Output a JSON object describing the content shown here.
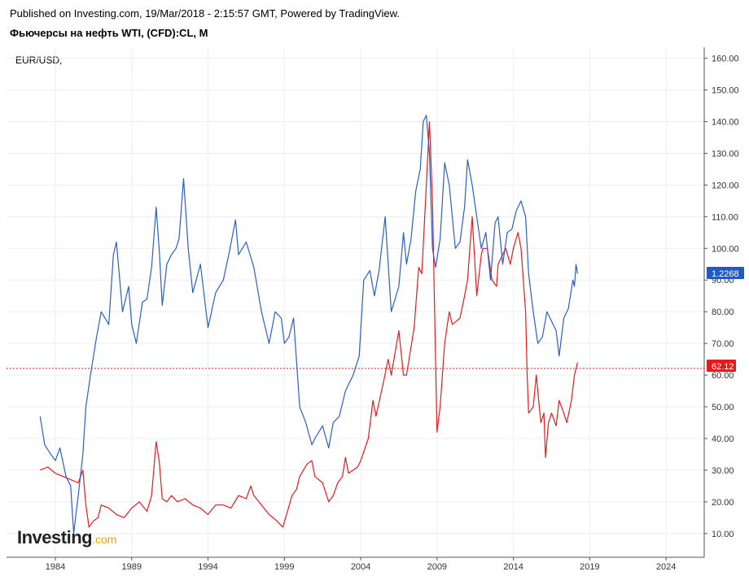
{
  "header": {
    "published": "Published on Investing.com, 19/Mar/2018 - 2:15:57 GMT, Powered by TradingView.",
    "title": "Фьючерсы на нефть WTI, (CFD):CL, M",
    "overlay_label": "EUR/USD,"
  },
  "logo": {
    "main": "Investing",
    "suffix": ".com"
  },
  "colors": {
    "oil": "#e8191c",
    "eurusd": "#2b5fc4",
    "grid": "#eeeeee",
    "axis": "#555555",
    "badge_oil": "#e8191c",
    "badge_eurusd": "#1f5bc3"
  },
  "badges": {
    "oil": "62.12",
    "eurusd": "1.2268"
  },
  "chart_data": {
    "type": "line",
    "title": "Фьючерсы на нефть WTI, (CFD):CL, M",
    "xlabel": "",
    "ylabel": "",
    "x_ticks": [
      "1984",
      "1989",
      "1994",
      "1999",
      "2004",
      "2009",
      "2014",
      "2019",
      "2024"
    ],
    "y_ticks": [
      "10.00",
      "20.00",
      "30.00",
      "40.00",
      "50.00",
      "60.00",
      "70.00",
      "80.00",
      "90.00",
      "100.00",
      "110.00",
      "120.00",
      "130.00",
      "140.00",
      "150.00",
      "160.00"
    ],
    "xlim": [
      1980.8,
      2026.5
    ],
    "ylim": [
      2.5,
      163.5
    ],
    "grid": true,
    "reference_line": 62.12,
    "series": [
      {
        "key": "oil",
        "x": [
          1983.0,
          1983.5,
          1984.0,
          1984.5,
          1985.0,
          1985.5,
          1985.8,
          1986.0,
          1986.2,
          1986.5,
          1986.8,
          1987.0,
          1987.5,
          1988.0,
          1988.5,
          1989.0,
          1989.5,
          1990.0,
          1990.3,
          1990.6,
          1990.8,
          1991.0,
          1991.3,
          1991.6,
          1992.0,
          1992.5,
          1993.0,
          1993.5,
          1994.0,
          1994.5,
          1995.0,
          1995.5,
          1996.0,
          1996.5,
          1996.8,
          1997.0,
          1997.5,
          1998.0,
          1998.5,
          1998.9,
          1999.2,
          1999.5,
          1999.8,
          2000.0,
          2000.5,
          2000.8,
          2001.0,
          2001.5,
          2001.9,
          2002.2,
          2002.5,
          2002.8,
          2003.0,
          2003.2,
          2003.5,
          2003.8,
          2004.0,
          2004.5,
          2004.8,
          2005.0,
          2005.5,
          2005.8,
          2006.0,
          2006.5,
          2006.8,
          2007.0,
          2007.5,
          2007.8,
          2008.0,
          2008.3,
          2008.5,
          2008.7,
          2008.9,
          2009.0,
          2009.2,
          2009.5,
          2009.8,
          2010.0,
          2010.5,
          2010.8,
          2011.0,
          2011.3,
          2011.6,
          2011.9,
          2012.0,
          2012.3,
          2012.6,
          2012.9,
          2013.0,
          2013.5,
          2013.8,
          2014.0,
          2014.3,
          2014.5,
          2014.8,
          2014.9,
          2015.0,
          2015.3,
          2015.5,
          2015.8,
          2016.0,
          2016.1,
          2016.3,
          2016.5,
          2016.8,
          2017.0,
          2017.3,
          2017.5,
          2017.8,
          2018.0,
          2018.2
        ],
        "y": [
          30,
          31,
          29,
          28,
          27,
          26,
          30,
          19,
          12,
          14,
          15,
          19,
          18,
          16,
          15,
          18,
          20,
          17,
          22,
          39,
          33,
          21,
          20,
          22,
          20,
          21,
          19,
          18,
          16,
          19,
          19,
          18,
          22,
          21,
          25,
          22,
          19,
          16,
          14,
          12,
          17,
          22,
          24,
          28,
          32,
          33,
          28,
          26,
          20,
          22,
          26,
          28,
          34,
          29,
          30,
          31,
          33,
          40,
          52,
          47,
          58,
          65,
          60,
          74,
          60,
          60,
          75,
          94,
          92,
          120,
          140,
          115,
          65,
          42,
          50,
          70,
          80,
          76,
          78,
          85,
          90,
          110,
          85,
          98,
          100,
          100,
          90,
          88,
          95,
          100,
          95,
          100,
          105,
          100,
          80,
          60,
          48,
          50,
          60,
          45,
          48,
          34,
          45,
          48,
          44,
          52,
          48,
          45,
          52,
          60,
          64
        ]
      },
      {
        "key": "eurusd",
        "x": [
          1983.0,
          1983.3,
          1983.7,
          1984.0,
          1984.3,
          1984.7,
          1985.0,
          1985.2,
          1985.5,
          1985.8,
          1986.0,
          1986.3,
          1986.7,
          1987.0,
          1987.5,
          1987.8,
          1988.0,
          1988.4,
          1988.8,
          1989.0,
          1989.3,
          1989.7,
          1990.0,
          1990.3,
          1990.6,
          1990.8,
          1991.0,
          1991.3,
          1991.6,
          1991.9,
          1992.1,
          1992.4,
          1992.7,
          1993.0,
          1993.5,
          1994.0,
          1994.5,
          1995.0,
          1995.4,
          1995.8,
          1996.0,
          1996.5,
          1997.0,
          1997.5,
          1998.0,
          1998.4,
          1998.8,
          1999.0,
          1999.3,
          1999.6,
          2000.0,
          2000.4,
          2000.8,
          2001.0,
          2001.5,
          2001.9,
          2002.2,
          2002.6,
          2003.0,
          2003.5,
          2003.9,
          2004.2,
          2004.6,
          2004.9,
          2005.2,
          2005.6,
          2006.0,
          2006.5,
          2006.8,
          2007.0,
          2007.3,
          2007.6,
          2007.9,
          2008.1,
          2008.3,
          2008.5,
          2008.7,
          2008.9,
          2009.2,
          2009.5,
          2009.8,
          2010.2,
          2010.5,
          2010.8,
          2011.0,
          2011.3,
          2011.6,
          2011.9,
          2012.2,
          2012.5,
          2012.8,
          2013.0,
          2013.3,
          2013.6,
          2013.9,
          2014.2,
          2014.5,
          2014.8,
          2015.0,
          2015.3,
          2015.6,
          2015.9,
          2016.2,
          2016.5,
          2016.8,
          2017.0,
          2017.3,
          2017.6,
          2017.9,
          2018.0,
          2018.1,
          2018.2
        ],
        "y": [
          47,
          38,
          35,
          33,
          37,
          28,
          25,
          10,
          22,
          35,
          50,
          60,
          72,
          80,
          76,
          98,
          102,
          80,
          88,
          76,
          70,
          83,
          84,
          94,
          113,
          100,
          82,
          95,
          98,
          100,
          103,
          122,
          100,
          86,
          95,
          75,
          86,
          90,
          99,
          109,
          98,
          102,
          94,
          80,
          70,
          80,
          78,
          70,
          72,
          78,
          50,
          45,
          38,
          40,
          44,
          37,
          45,
          47,
          55,
          60,
          66,
          90,
          93,
          85,
          93,
          110,
          80,
          88,
          105,
          95,
          103,
          118,
          125,
          140,
          142,
          130,
          100,
          94,
          103,
          127,
          120,
          100,
          102,
          113,
          128,
          120,
          110,
          100,
          105,
          90,
          108,
          110,
          95,
          105,
          106,
          112,
          115,
          110,
          92,
          80,
          70,
          72,
          80,
          77,
          74,
          66,
          78,
          81,
          90,
          88,
          95,
          92
        ]
      }
    ]
  }
}
